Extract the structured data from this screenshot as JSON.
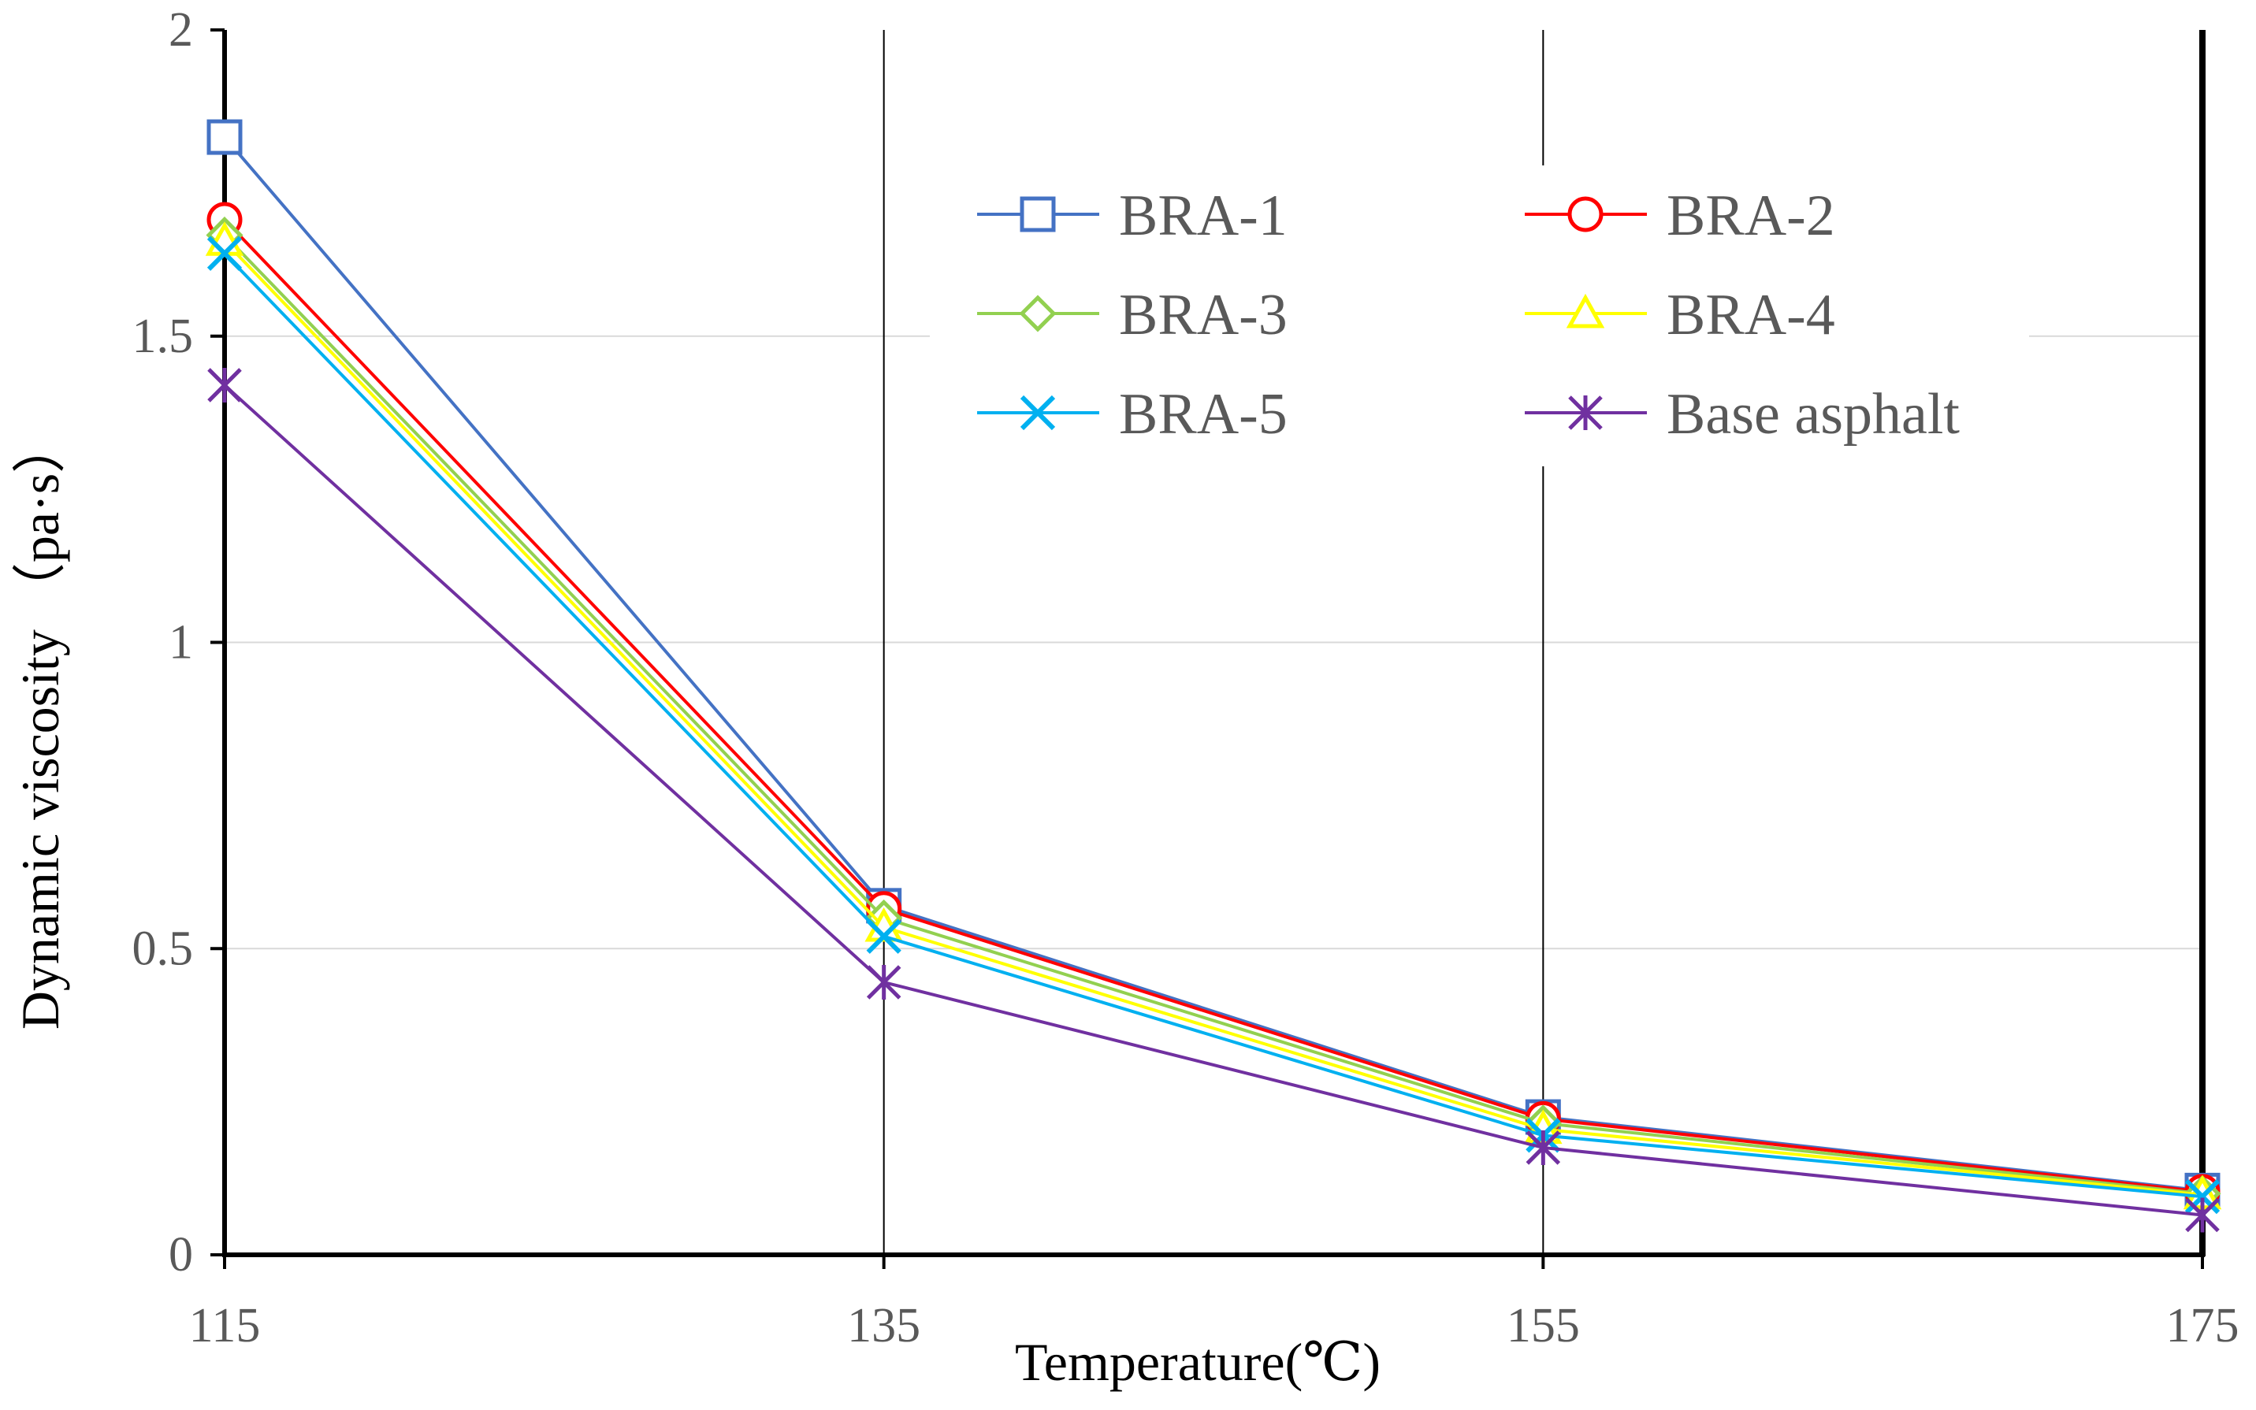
{
  "chart_data": {
    "type": "line",
    "x": [
      115,
      135,
      155,
      175
    ],
    "x_ticks": [
      "115",
      "135",
      "155",
      "175"
    ],
    "xlim": [
      115,
      175
    ],
    "ylim": [
      0,
      2
    ],
    "y_ticks": [
      "0",
      "0.5",
      "1",
      "1.5",
      "2"
    ],
    "xlabel": "Temperature(℃)",
    "ylabel": "Dynamic viscosity （pa·s）",
    "grid": "horizontal light, vertical dark at 135 and 155",
    "legend_position": "top-right",
    "series": [
      {
        "name": "BRA-1",
        "values": [
          1.825,
          0.57,
          0.225,
          0.105
        ],
        "color": "#4472C4",
        "marker": "square"
      },
      {
        "name": "BRA-2",
        "values": [
          1.69,
          0.565,
          0.222,
          0.103
        ],
        "color": "#FF0000",
        "marker": "circle"
      },
      {
        "name": "BRA-3",
        "values": [
          1.665,
          0.55,
          0.215,
          0.1
        ],
        "color": "#92D050",
        "marker": "diamond"
      },
      {
        "name": "BRA-4",
        "values": [
          1.655,
          0.535,
          0.205,
          0.098
        ],
        "color": "#FFFF00",
        "marker": "triangle"
      },
      {
        "name": "BRA-5",
        "values": [
          1.635,
          0.52,
          0.195,
          0.095
        ],
        "color": "#00B0F0",
        "marker": "x"
      },
      {
        "name": "Base asphalt",
        "values": [
          1.42,
          0.445,
          0.175,
          0.065
        ],
        "color": "#7030A0",
        "marker": "star"
      }
    ]
  }
}
